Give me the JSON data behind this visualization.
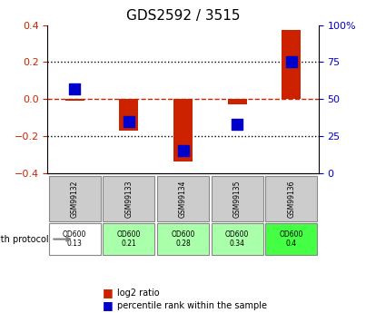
{
  "title": "GDS2592 / 3515",
  "samples": [
    "GSM99132",
    "GSM99133",
    "GSM99134",
    "GSM99135",
    "GSM99136"
  ],
  "log2_ratio": [
    -0.01,
    -0.17,
    -0.335,
    -0.03,
    0.375
  ],
  "percentile_rank_pct": [
    57,
    35,
    15,
    33,
    75
  ],
  "growth_protocol_labels": [
    "OD600\n0.13",
    "OD600\n0.21",
    "OD600\n0.28",
    "OD600\n0.34",
    "OD600\n0.4"
  ],
  "growth_protocol_colors": [
    "#ffffff",
    "#aaffaa",
    "#aaffaa",
    "#aaffaa",
    "#44ff44"
  ],
  "bar_color": "#cc2200",
  "dot_color": "#0000cc",
  "dashed_line_color": "#cc2200",
  "ylim_left": [
    -0.4,
    0.4
  ],
  "yticks_left": [
    -0.4,
    -0.2,
    0.0,
    0.2,
    0.4
  ],
  "yticks_right": [
    0,
    25,
    50,
    75,
    100
  ],
  "bar_width": 0.35,
  "dot_size": 80,
  "background_color": "#ffffff",
  "plot_bg_color": "#ffffff",
  "grid_color": "#000000",
  "legend_red_label": "log2 ratio",
  "legend_blue_label": "percentile rank within the sample"
}
